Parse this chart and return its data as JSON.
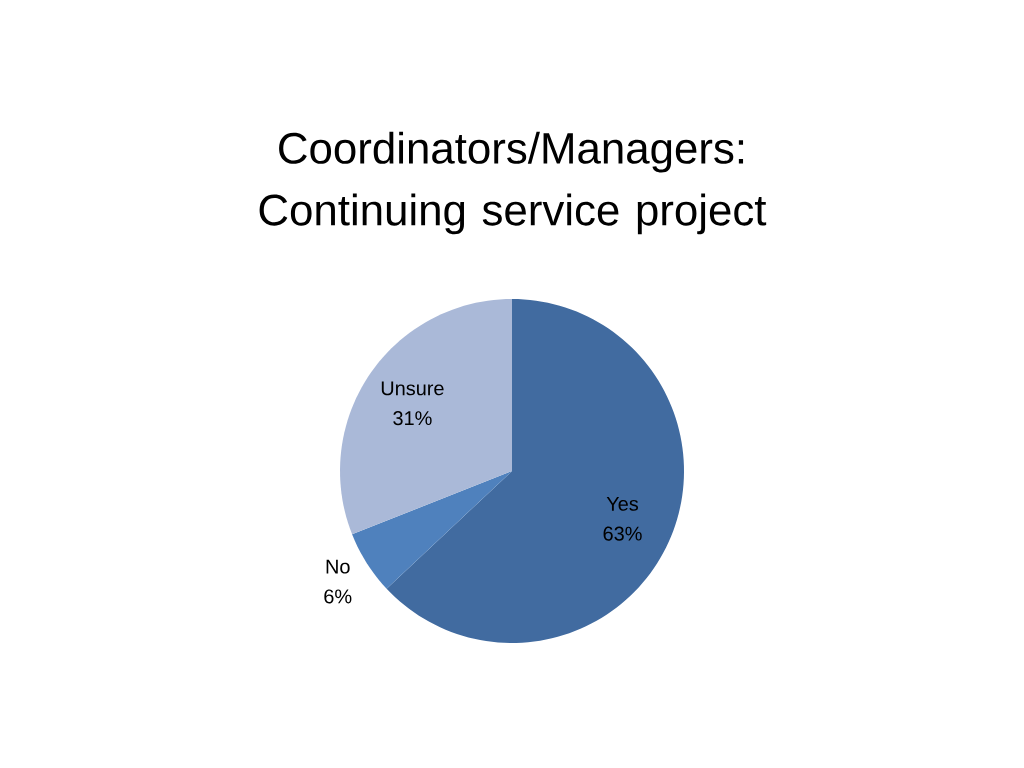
{
  "chart_data": {
    "type": "pie",
    "title": "Coordinators/Managers: Continuing service project",
    "categories": [
      "Yes",
      "No",
      "Unsure"
    ],
    "values": [
      63,
      6,
      31
    ],
    "value_labels": [
      "63%",
      "6%",
      "31%"
    ],
    "colors": [
      "#416ba0",
      "#4f81bd",
      "#aab9d8"
    ]
  }
}
